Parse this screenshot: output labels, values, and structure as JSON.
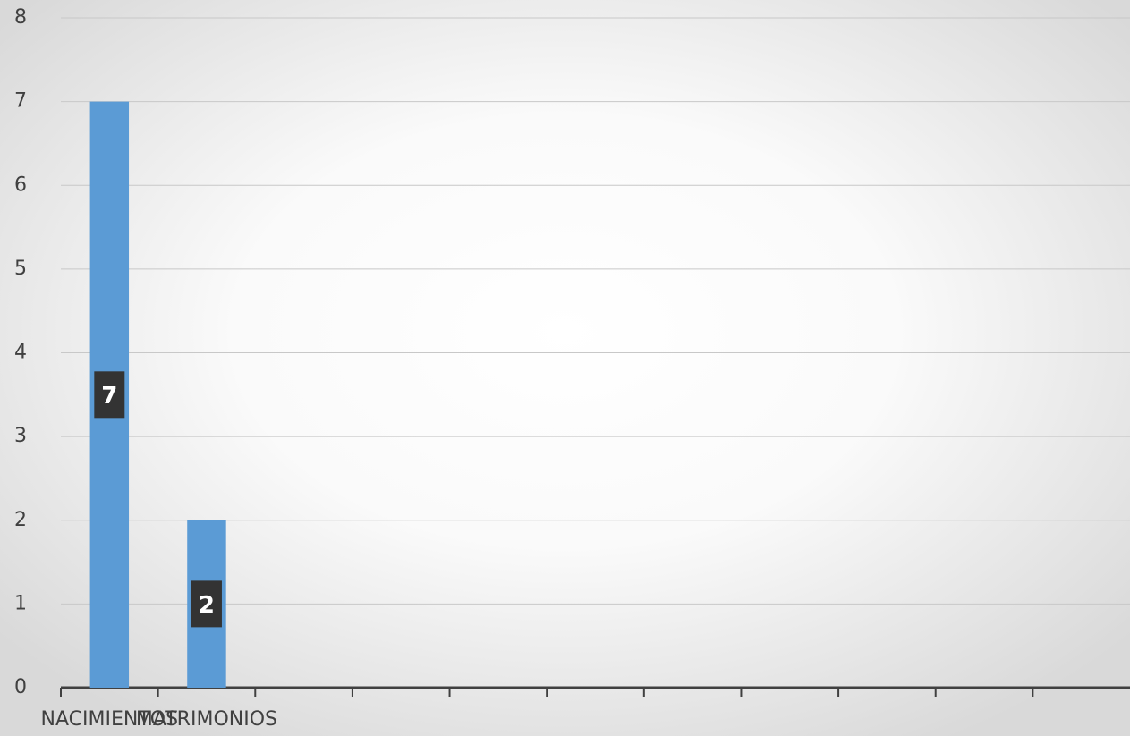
{
  "chart_data": {
    "type": "bar",
    "categories": [
      "NACIMIENTOS",
      "MATRIMONIOS",
      null,
      null,
      null,
      null,
      null,
      null,
      null,
      null,
      null
    ],
    "values": [
      7,
      2,
      null,
      null,
      null,
      null,
      null,
      null,
      null,
      null,
      null
    ],
    "color": "#5b9bd5",
    "ylim": [
      0,
      8
    ],
    "yticks": [
      0,
      1,
      2,
      3,
      4,
      5,
      6,
      7,
      8
    ],
    "grid": true
  }
}
